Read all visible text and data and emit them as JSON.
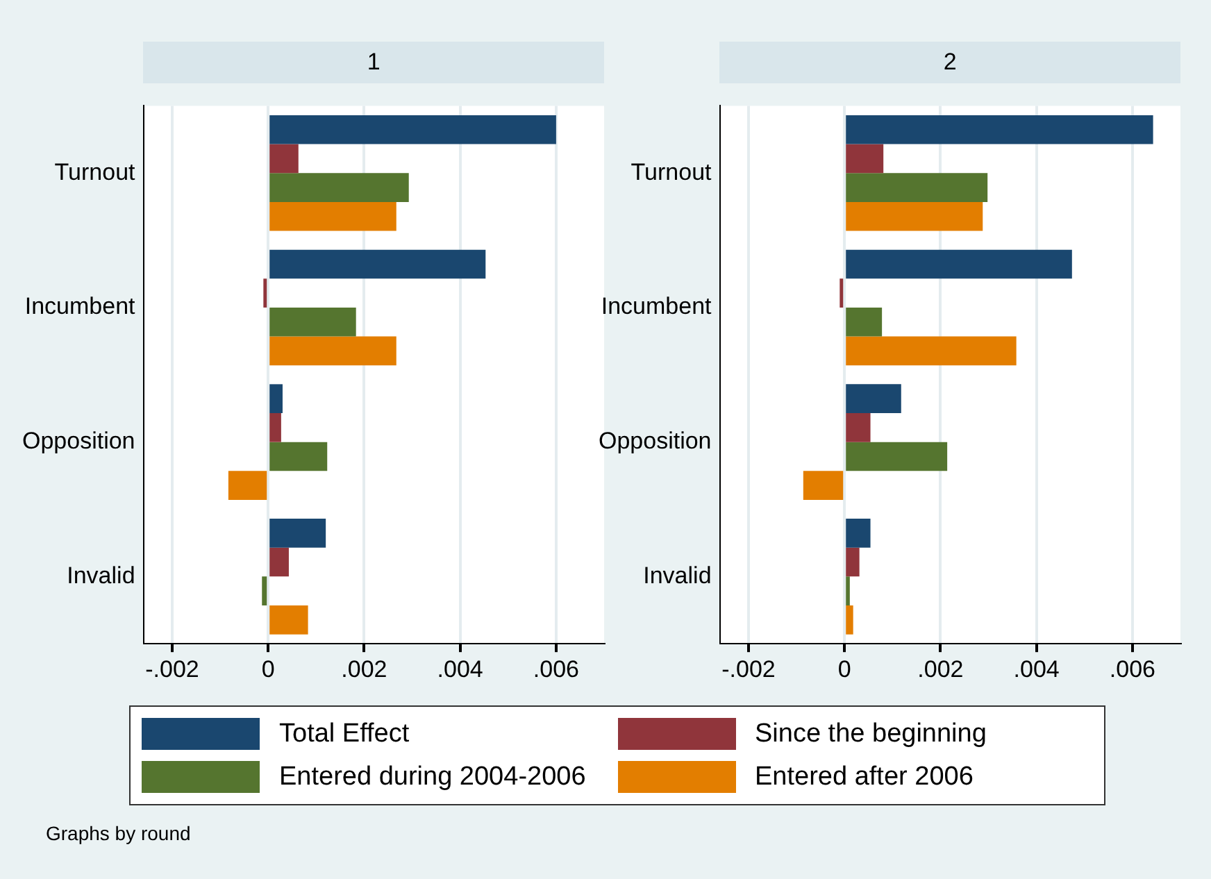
{
  "chart_data": [
    {
      "type": "bar",
      "orientation": "horizontal",
      "title": "1",
      "categories": [
        "Turnout",
        "Incumbent",
        "Opposition",
        "Invalid"
      ],
      "series": [
        {
          "name": "Total Effect",
          "color": "#1a476f",
          "values": [
            0.006,
            0.00453,
            0.0003,
            0.0012
          ]
        },
        {
          "name": "Since the beginning",
          "color": "#90353b",
          "values": [
            0.00063,
            -0.0001,
            0.00027,
            0.00043
          ]
        },
        {
          "name": "Entered during 2004-2006",
          "color": "#55752f",
          "values": [
            0.00293,
            0.00183,
            0.00123,
            -0.00013
          ]
        },
        {
          "name": "Entered after 2006",
          "color": "#e37e00",
          "values": [
            0.00267,
            0.00267,
            -0.00083,
            0.00083
          ]
        }
      ],
      "xlim": [
        -0.0026,
        0.007
      ],
      "xticks": [
        {
          "value": -0.002,
          "label": "-.002"
        },
        0,
        {
          "value": 0.002,
          "label": ".002"
        },
        {
          "value": 0.004,
          "label": ".004"
        },
        {
          "value": 0.006,
          "label": ".006"
        }
      ],
      "grid": "x",
      "legend": "bottom",
      "annotations": [
        "Graphs by round"
      ]
    },
    {
      "type": "bar",
      "orientation": "horizontal",
      "title": "2",
      "categories": [
        "Turnout",
        "Incumbent",
        "Opposition",
        "Invalid"
      ],
      "series": [
        {
          "color": "#1a476f",
          "values": [
            0.00643,
            0.00474,
            0.00118,
            0.00054
          ]
        },
        {
          "color": "#90353b",
          "values": [
            0.00081,
            -0.0001,
            0.00054,
            0.00031
          ]
        },
        {
          "color": "#55752f",
          "values": [
            0.00298,
            0.00078,
            0.00214,
            0.00011
          ]
        },
        {
          "color": "#e37e00",
          "values": [
            0.00288,
            0.00358,
            -0.00086,
            0.00018
          ]
        }
      ],
      "xlim": [
        -0.0026,
        0.007
      ],
      "xticks": [
        {
          "value": -0.002,
          "label": "-.002"
        },
        0,
        {
          "value": 0.002,
          "label": ".002"
        },
        {
          "value": 0.004,
          "label": ".004"
        },
        {
          "value": 0.006,
          "label": ".006"
        }
      ],
      "grid": "x"
    }
  ]
}
